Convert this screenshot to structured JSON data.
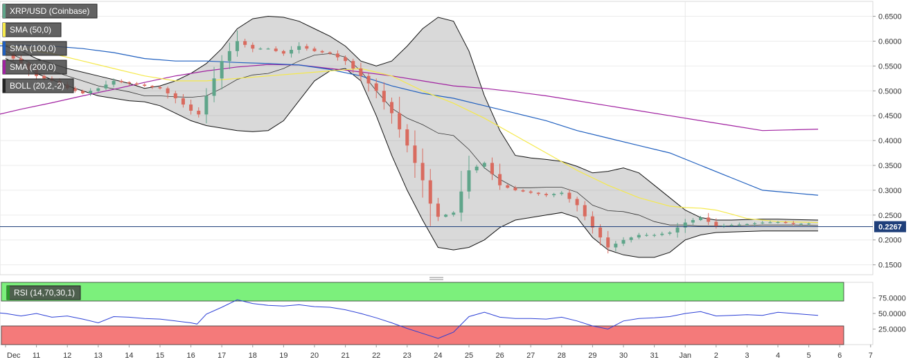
{
  "chart_data": [
    {
      "type": "candlestick",
      "title": "XRP/USD (Coinbase)",
      "x_tick_labels": [
        "Dec",
        "11",
        "12",
        "13",
        "14",
        "15",
        "16",
        "17",
        "18",
        "19",
        "20",
        "21",
        "22",
        "23",
        "24",
        "25",
        "26",
        "27",
        "28",
        "29",
        "30",
        "31",
        "Jan",
        "2",
        "3",
        "4",
        "5",
        "6",
        "7"
      ],
      "y_tick_labels": [
        "0.1500",
        "0.2000",
        "0.2500",
        "0.3000",
        "0.3500",
        "0.4000",
        "0.4500",
        "0.5000",
        "0.5500",
        "0.6000",
        "0.6500"
      ],
      "ylim": [
        0.13,
        0.68
      ],
      "current_price": 0.2267,
      "current_price_label": "0.2267",
      "indicators": [
        {
          "label": "SMA (50,0)",
          "color": "#f5e94a"
        },
        {
          "label": "SMA (100,0)",
          "color": "#1f5fbf"
        },
        {
          "label": "SMA (200,0)",
          "color": "#a020a0"
        },
        {
          "label": "BOLL (20,2,-2)",
          "color": "#222222"
        }
      ],
      "close_path": [
        [
          10.0,
          0.575
        ],
        [
          10.5,
          0.555
        ],
        [
          11.0,
          0.53
        ],
        [
          11.5,
          0.52
        ],
        [
          12.0,
          0.505
        ],
        [
          12.5,
          0.495
        ],
        [
          13.0,
          0.505
        ],
        [
          13.5,
          0.52
        ],
        [
          14.0,
          0.515
        ],
        [
          14.5,
          0.51
        ],
        [
          15.0,
          0.505
        ],
        [
          15.5,
          0.485
        ],
        [
          16.0,
          0.46
        ],
        [
          16.2,
          0.445
        ],
        [
          16.5,
          0.49
        ],
        [
          17.0,
          0.56
        ],
        [
          17.5,
          0.6
        ],
        [
          18.0,
          0.585
        ],
        [
          18.5,
          0.585
        ],
        [
          19.0,
          0.575
        ],
        [
          19.5,
          0.59
        ],
        [
          20.0,
          0.58
        ],
        [
          20.5,
          0.575
        ],
        [
          21.0,
          0.56
        ],
        [
          21.5,
          0.53
        ],
        [
          22.0,
          0.5
        ],
        [
          22.5,
          0.455
        ],
        [
          23.0,
          0.39
        ],
        [
          23.5,
          0.32
        ],
        [
          23.9,
          0.245
        ],
        [
          24.5,
          0.255
        ],
        [
          25.0,
          0.34
        ],
        [
          25.5,
          0.355
        ],
        [
          26.0,
          0.31
        ],
        [
          26.5,
          0.3
        ],
        [
          27.0,
          0.295
        ],
        [
          27.5,
          0.29
        ],
        [
          28.0,
          0.295
        ],
        [
          28.5,
          0.27
        ],
        [
          29.0,
          0.225
        ],
        [
          29.5,
          0.185
        ],
        [
          30.0,
          0.2
        ],
        [
          30.5,
          0.21
        ],
        [
          31.0,
          0.21
        ],
        [
          31.5,
          0.215
        ],
        [
          32.0,
          0.235
        ],
        [
          32.5,
          0.245
        ],
        [
          33.0,
          0.228
        ],
        [
          33.5,
          0.23
        ],
        [
          34.0,
          0.232
        ],
        [
          34.5,
          0.235
        ],
        [
          35.0,
          0.236
        ],
        [
          35.5,
          0.232
        ],
        [
          36.0,
          0.233
        ],
        [
          36.3,
          0.228
        ]
      ],
      "sma_50": [
        [
          9.6,
          0.6
        ],
        [
          10.5,
          0.585
        ],
        [
          11.5,
          0.575
        ],
        [
          12.5,
          0.56
        ],
        [
          13.5,
          0.545
        ],
        [
          14.5,
          0.53
        ],
        [
          15.5,
          0.52
        ],
        [
          16.5,
          0.52
        ],
        [
          17.5,
          0.525
        ],
        [
          18.5,
          0.53
        ],
        [
          19.5,
          0.535
        ],
        [
          20.5,
          0.54
        ],
        [
          21.5,
          0.545
        ],
        [
          22.5,
          0.53
        ],
        [
          23.5,
          0.5
        ],
        [
          24.5,
          0.475
        ],
        [
          25.5,
          0.445
        ],
        [
          26.5,
          0.41
        ],
        [
          27.5,
          0.375
        ],
        [
          28.5,
          0.34
        ],
        [
          29.5,
          0.31
        ],
        [
          30.5,
          0.285
        ],
        [
          31.5,
          0.268
        ],
        [
          32.0,
          0.265
        ],
        [
          32.5,
          0.264
        ],
        [
          33.0,
          0.26
        ],
        [
          33.5,
          0.252
        ],
        [
          34.0,
          0.243
        ],
        [
          35.0,
          0.237
        ],
        [
          36.3,
          0.235
        ]
      ],
      "sma_100": [
        [
          9.6,
          0.59
        ],
        [
          10.5,
          0.592
        ],
        [
          11.5,
          0.59
        ],
        [
          12.5,
          0.585
        ],
        [
          13.5,
          0.577
        ],
        [
          14.5,
          0.565
        ],
        [
          15.5,
          0.56
        ],
        [
          16.5,
          0.56
        ],
        [
          17.5,
          0.557
        ],
        [
          18.5,
          0.555
        ],
        [
          19.5,
          0.552
        ],
        [
          20.5,
          0.543
        ],
        [
          21.5,
          0.53
        ],
        [
          22.5,
          0.51
        ],
        [
          23.5,
          0.495
        ],
        [
          24.5,
          0.485
        ],
        [
          25.5,
          0.47
        ],
        [
          26.5,
          0.455
        ],
        [
          27.5,
          0.44
        ],
        [
          28.5,
          0.42
        ],
        [
          29.5,
          0.405
        ],
        [
          30.5,
          0.39
        ],
        [
          31.5,
          0.375
        ],
        [
          32.5,
          0.35
        ],
        [
          33.5,
          0.325
        ],
        [
          34.5,
          0.3
        ],
        [
          36.3,
          0.29
        ]
      ],
      "sma_200": [
        [
          9.6,
          0.45
        ],
        [
          10.5,
          0.463
        ],
        [
          11.5,
          0.476
        ],
        [
          12.5,
          0.49
        ],
        [
          13.5,
          0.503
        ],
        [
          14.5,
          0.517
        ],
        [
          15.5,
          0.53
        ],
        [
          16.5,
          0.54
        ],
        [
          17.5,
          0.548
        ],
        [
          18.5,
          0.553
        ],
        [
          19.5,
          0.552
        ],
        [
          20.5,
          0.545
        ],
        [
          21.5,
          0.538
        ],
        [
          22.5,
          0.53
        ],
        [
          23.5,
          0.52
        ],
        [
          24.5,
          0.51
        ],
        [
          25.5,
          0.505
        ],
        [
          26.5,
          0.498
        ],
        [
          27.5,
          0.49
        ],
        [
          28.5,
          0.48
        ],
        [
          29.5,
          0.47
        ],
        [
          30.5,
          0.46
        ],
        [
          31.5,
          0.45
        ],
        [
          32.5,
          0.44
        ],
        [
          33.5,
          0.43
        ],
        [
          34.5,
          0.42
        ],
        [
          36.3,
          0.423
        ]
      ],
      "boll_upper": [
        [
          10.0,
          0.59
        ],
        [
          10.5,
          0.58
        ],
        [
          11.0,
          0.565
        ],
        [
          12.0,
          0.545
        ],
        [
          13.0,
          0.53
        ],
        [
          14.0,
          0.515
        ],
        [
          14.5,
          0.505
        ],
        [
          15.0,
          0.51
        ],
        [
          15.5,
          0.52
        ],
        [
          16.0,
          0.535
        ],
        [
          16.5,
          0.555
        ],
        [
          17.0,
          0.585
        ],
        [
          17.5,
          0.625
        ],
        [
          18.0,
          0.645
        ],
        [
          18.5,
          0.65
        ],
        [
          19.0,
          0.648
        ],
        [
          19.5,
          0.64
        ],
        [
          20.0,
          0.625
        ],
        [
          20.5,
          0.61
        ],
        [
          21.0,
          0.59
        ],
        [
          21.5,
          0.56
        ],
        [
          22.0,
          0.55
        ],
        [
          22.5,
          0.56
        ],
        [
          23.0,
          0.59
        ],
        [
          23.5,
          0.625
        ],
        [
          24.0,
          0.648
        ],
        [
          24.5,
          0.64
        ],
        [
          25.0,
          0.58
        ],
        [
          25.5,
          0.49
        ],
        [
          26.0,
          0.42
        ],
        [
          26.5,
          0.37
        ],
        [
          27.0,
          0.365
        ],
        [
          27.5,
          0.362
        ],
        [
          28.0,
          0.358
        ],
        [
          28.5,
          0.348
        ],
        [
          29.0,
          0.335
        ],
        [
          29.5,
          0.338
        ],
        [
          30.0,
          0.345
        ],
        [
          30.5,
          0.335
        ],
        [
          31.0,
          0.31
        ],
        [
          31.5,
          0.285
        ],
        [
          32.0,
          0.26
        ],
        [
          32.5,
          0.245
        ],
        [
          33.0,
          0.24
        ],
        [
          33.5,
          0.24
        ],
        [
          34.0,
          0.241
        ],
        [
          34.5,
          0.242
        ],
        [
          35.0,
          0.242
        ],
        [
          35.5,
          0.241
        ],
        [
          36.3,
          0.24
        ]
      ],
      "boll_lower": [
        [
          10.0,
          0.565
        ],
        [
          10.5,
          0.55
        ],
        [
          11.0,
          0.535
        ],
        [
          12.0,
          0.51
        ],
        [
          13.0,
          0.49
        ],
        [
          14.0,
          0.48
        ],
        [
          14.5,
          0.478
        ],
        [
          15.0,
          0.47
        ],
        [
          15.5,
          0.455
        ],
        [
          16.0,
          0.44
        ],
        [
          16.5,
          0.43
        ],
        [
          17.0,
          0.425
        ],
        [
          17.5,
          0.42
        ],
        [
          18.0,
          0.418
        ],
        [
          18.5,
          0.42
        ],
        [
          19.0,
          0.44
        ],
        [
          19.5,
          0.48
        ],
        [
          20.0,
          0.52
        ],
        [
          20.5,
          0.54
        ],
        [
          21.0,
          0.545
        ],
        [
          21.5,
          0.52
        ],
        [
          22.0,
          0.45
        ],
        [
          22.5,
          0.37
        ],
        [
          23.0,
          0.3
        ],
        [
          23.5,
          0.24
        ],
        [
          24.0,
          0.185
        ],
        [
          24.5,
          0.18
        ],
        [
          25.0,
          0.185
        ],
        [
          25.5,
          0.2
        ],
        [
          26.0,
          0.225
        ],
        [
          26.5,
          0.24
        ],
        [
          27.0,
          0.245
        ],
        [
          27.5,
          0.25
        ],
        [
          28.0,
          0.255
        ],
        [
          28.5,
          0.245
        ],
        [
          29.0,
          0.205
        ],
        [
          29.5,
          0.18
        ],
        [
          30.0,
          0.17
        ],
        [
          30.5,
          0.165
        ],
        [
          31.0,
          0.165
        ],
        [
          31.5,
          0.175
        ],
        [
          32.0,
          0.2
        ],
        [
          32.5,
          0.21
        ],
        [
          33.0,
          0.215
        ],
        [
          33.5,
          0.216
        ],
        [
          34.0,
          0.217
        ],
        [
          34.5,
          0.218
        ],
        [
          35.0,
          0.218
        ],
        [
          35.5,
          0.218
        ],
        [
          36.3,
          0.218
        ]
      ],
      "boll_middle": [
        [
          10.0,
          0.58
        ],
        [
          10.5,
          0.565
        ],
        [
          11.0,
          0.55
        ],
        [
          12.0,
          0.53
        ],
        [
          13.0,
          0.51
        ],
        [
          14.0,
          0.498
        ],
        [
          14.5,
          0.49
        ],
        [
          15.0,
          0.49
        ],
        [
          15.5,
          0.488
        ],
        [
          16.0,
          0.487
        ],
        [
          16.5,
          0.49
        ],
        [
          17.0,
          0.505
        ],
        [
          17.5,
          0.523
        ],
        [
          18.0,
          0.532
        ],
        [
          18.5,
          0.535
        ],
        [
          19.0,
          0.545
        ],
        [
          19.5,
          0.56
        ],
        [
          20.0,
          0.572
        ],
        [
          20.5,
          0.575
        ],
        [
          21.0,
          0.568
        ],
        [
          21.5,
          0.54
        ],
        [
          22.0,
          0.5
        ],
        [
          22.5,
          0.465
        ],
        [
          23.0,
          0.445
        ],
        [
          23.5,
          0.432
        ],
        [
          24.0,
          0.415
        ],
        [
          24.5,
          0.41
        ],
        [
          25.0,
          0.382
        ],
        [
          25.5,
          0.345
        ],
        [
          26.0,
          0.322
        ],
        [
          26.5,
          0.305
        ],
        [
          27.0,
          0.305
        ],
        [
          27.5,
          0.306
        ],
        [
          28.0,
          0.306
        ],
        [
          28.5,
          0.296
        ],
        [
          29.0,
          0.27
        ],
        [
          29.5,
          0.259
        ],
        [
          30.0,
          0.257
        ],
        [
          30.5,
          0.25
        ],
        [
          31.0,
          0.237
        ],
        [
          31.5,
          0.23
        ],
        [
          32.0,
          0.23
        ],
        [
          32.5,
          0.228
        ],
        [
          33.0,
          0.228
        ],
        [
          33.5,
          0.228
        ],
        [
          34.0,
          0.229
        ],
        [
          34.5,
          0.23
        ],
        [
          35.0,
          0.23
        ],
        [
          35.5,
          0.23
        ],
        [
          36.3,
          0.229
        ]
      ]
    },
    {
      "type": "line",
      "title": "RSI (14,70,30,1)",
      "y_tick_labels": [
        "25.0000",
        "50.0000",
        "75.0000"
      ],
      "ylim": [
        0,
        100
      ],
      "overbought": 70,
      "oversold": 30,
      "values": [
        [
          9.6,
          52
        ],
        [
          10.0,
          50
        ],
        [
          10.5,
          46
        ],
        [
          11.0,
          50
        ],
        [
          11.5,
          44
        ],
        [
          12.0,
          46
        ],
        [
          12.5,
          41
        ],
        [
          13.0,
          35
        ],
        [
          13.5,
          45
        ],
        [
          14.0,
          44
        ],
        [
          14.5,
          42
        ],
        [
          15.0,
          41
        ],
        [
          15.5,
          38
        ],
        [
          16.0,
          35
        ],
        [
          16.2,
          33
        ],
        [
          16.5,
          49
        ],
        [
          17.0,
          60
        ],
        [
          17.5,
          72
        ],
        [
          18.0,
          66
        ],
        [
          18.5,
          63
        ],
        [
          19.0,
          62
        ],
        [
          19.5,
          64
        ],
        [
          20.0,
          61
        ],
        [
          20.5,
          60
        ],
        [
          21.0,
          56
        ],
        [
          21.5,
          50
        ],
        [
          22.0,
          43
        ],
        [
          22.5,
          35
        ],
        [
          23.0,
          26
        ],
        [
          23.5,
          18
        ],
        [
          24.0,
          10
        ],
        [
          24.5,
          20
        ],
        [
          25.0,
          45
        ],
        [
          25.5,
          52
        ],
        [
          26.0,
          44
        ],
        [
          26.5,
          42
        ],
        [
          27.0,
          42
        ],
        [
          27.5,
          41
        ],
        [
          28.0,
          44
        ],
        [
          28.5,
          38
        ],
        [
          29.0,
          30
        ],
        [
          29.5,
          25
        ],
        [
          30.0,
          38
        ],
        [
          30.5,
          42
        ],
        [
          31.0,
          43
        ],
        [
          31.5,
          45
        ],
        [
          32.0,
          50
        ],
        [
          32.5,
          53
        ],
        [
          33.0,
          46
        ],
        [
          33.5,
          47
        ],
        [
          34.0,
          48
        ],
        [
          34.5,
          47
        ],
        [
          35.0,
          52
        ],
        [
          35.5,
          50
        ],
        [
          36.0,
          48
        ],
        [
          36.3,
          47
        ]
      ]
    }
  ]
}
